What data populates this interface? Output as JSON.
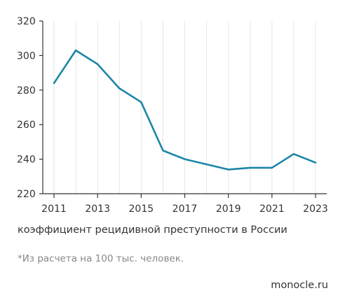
{
  "chart_data": {
    "type": "line",
    "x": [
      2011,
      2012,
      2013,
      2014,
      2015,
      2016,
      2017,
      2018,
      2019,
      2020,
      2021,
      2022,
      2023
    ],
    "series": [
      {
        "values": [
          284,
          303,
          295,
          281,
          273,
          245,
          240,
          237,
          234,
          235,
          235,
          243,
          238
        ],
        "color": "#1b86a6"
      }
    ],
    "xticks": [
      "2011",
      "2013",
      "2015",
      "2017",
      "2019",
      "2021",
      "2023"
    ],
    "yticks": [
      "220",
      "240",
      "260",
      "280",
      "300",
      "320"
    ],
    "xlim": [
      2011,
      2023
    ],
    "ylim": [
      220,
      320
    ],
    "grid": "vertical",
    "xlabel": "",
    "ylabel": ""
  },
  "caption": "коэффициент рецидивной преступности в России",
  "footnote": "*Из расчета на 100 тыс. человек.",
  "source": "monocle.ru",
  "colors": {
    "line": "#1b86a6",
    "grid": "#e6e6e6",
    "axis": "#333333"
  }
}
